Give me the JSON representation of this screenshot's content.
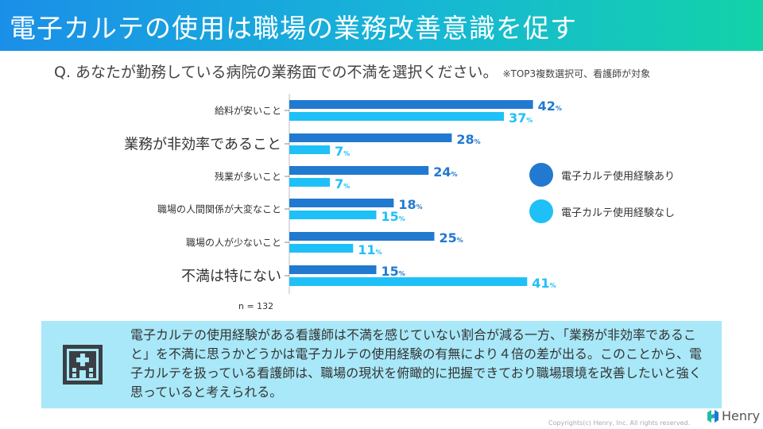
{
  "header": {
    "title": "電子カルテの使用は職場の業務改善意識を促す"
  },
  "question": {
    "text": "Q. あなたが勤務している病院の業務面での不満を選択ください。",
    "note": "※TOP3複数選択可、看護師が対象"
  },
  "sample_size": "n = 132",
  "colors": {
    "with_emr": "#2279d0",
    "without_emr": "#1fc0f7",
    "header_start": "#1a8fe8",
    "header_end": "#13d3a8",
    "callout_bg": "#a8e8f8"
  },
  "chart_data": {
    "type": "bar",
    "orientation": "horizontal",
    "categories": [
      "給料が安いこと",
      "業務が非効率であること",
      "残業が多いこと",
      "職場の人間関係が大変なこと",
      "職場の人が少ないこと",
      "不満は特にない"
    ],
    "series": [
      {
        "name": "電子カルテ使用経験あり",
        "values": [
          42,
          28,
          24,
          18,
          25,
          15
        ]
      },
      {
        "name": "電子カルテ使用経験なし",
        "values": [
          37,
          7,
          7,
          15,
          11,
          41
        ]
      }
    ],
    "unit": "%",
    "legend": "right"
  },
  "callout": {
    "icon": "hospital-icon",
    "text": "電子カルテの使用経験がある看護師は不満を感じていない割合が減る一方、「業務が非効率であること」を不満に思うかどうかは電子カルテの使用経験の有無により４倍の差が出る。このことから、電子カルテを扱っている看護師は、職場の現状を俯瞰的に把握できており職場環境を改善したいと強く思っていると考えられる。"
  },
  "footer": {
    "copyright": "Copyrights(c) Henry, Inc. All rights reserved.",
    "brand": "Henry"
  }
}
